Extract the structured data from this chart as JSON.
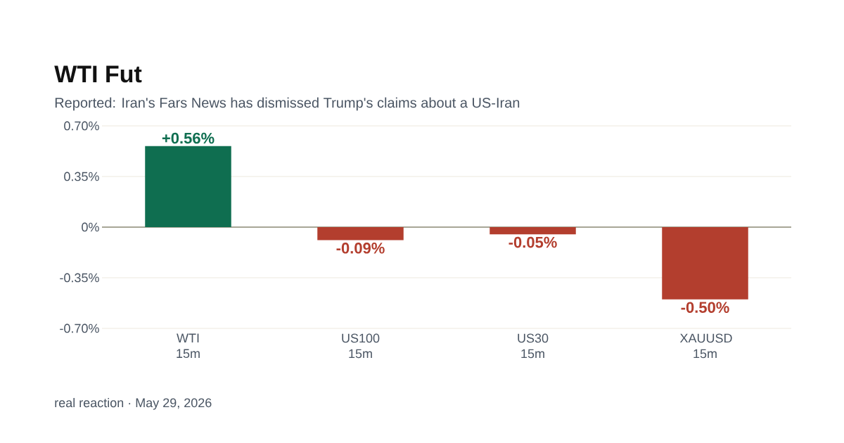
{
  "chart_data": {
    "type": "bar",
    "title": "WTI Fut",
    "subtitle": "Reported: Iran's Fars News has dismissed Trump's claims about a US-Iran",
    "categories": [
      "WTI 15m",
      "US100 15m",
      "US30 15m",
      "XAUUSD 15m"
    ],
    "values": [
      0.56,
      -0.09,
      -0.05,
      -0.5
    ],
    "value_labels": [
      "+0.56%",
      "-0.09%",
      "-0.05%",
      "-0.50%"
    ],
    "colors": [
      "#0f6e50",
      "#b33e2e",
      "#b33e2e",
      "#b33e2e"
    ],
    "ylim": [
      -0.7,
      0.7
    ],
    "yticks": [
      {
        "value": -0.7,
        "label": "-0.70%"
      },
      {
        "value": -0.35,
        "label": "-0.35%"
      },
      {
        "value": 0,
        "label": "0%"
      },
      {
        "value": 0.35,
        "label": "0.35%"
      },
      {
        "value": 0.7,
        "label": "0.70%"
      }
    ],
    "grid": "y",
    "annotations": [
      "real reaction · May 29, 2026"
    ]
  }
}
